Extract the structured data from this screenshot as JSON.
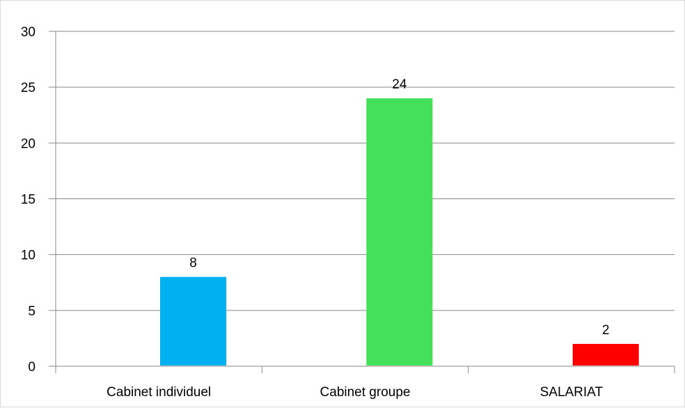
{
  "chart_data": {
    "type": "bar",
    "categories": [
      "Cabinet individuel",
      "Cabinet groupe",
      "SALARIAT"
    ],
    "values": [
      8,
      24,
      2
    ],
    "colors": [
      "#00b0f0",
      "#43e05a",
      "#ff0000"
    ],
    "data_labels": [
      "8",
      "24",
      "2"
    ],
    "title": "",
    "xlabel": "",
    "ylabel": "",
    "ylim": [
      0,
      30
    ],
    "yticks": [
      0,
      5,
      10,
      15,
      20,
      25,
      30
    ],
    "ytick_labels": [
      "0",
      "5",
      "10",
      "15",
      "20",
      "25",
      "30"
    ],
    "grid": true,
    "legend": "none"
  }
}
